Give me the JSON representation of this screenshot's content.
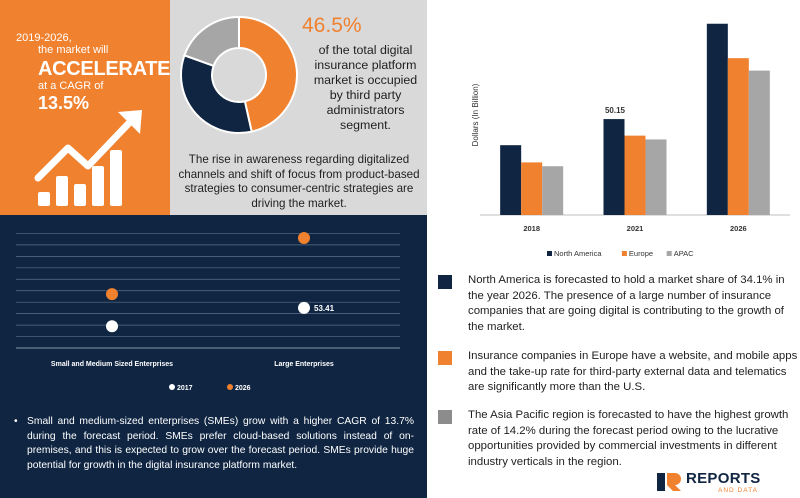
{
  "cagr": {
    "period": "2019-2026,",
    "subject": "the market will",
    "headline": "ACCELERATE",
    "prefix": "at a CAGR of",
    "value": "13.5%"
  },
  "share": {
    "percent": "46.5%",
    "text": "of the total digital insurance platform market is occupied by third party administrators segment.",
    "note": "The rise in awareness regarding digitalized channels and shift of focus from product-based strategies to consumer-centric strategies are driving the market.",
    "donut": {
      "orange": 46.5,
      "navy": 34,
      "grey": 19.5
    }
  },
  "enterprise": {
    "note": "Small and medium-sized enterprises (SMEs) grow with a higher CAGR of 13.7% during the forecast period. SMEs prefer cloud-based solutions instead of on-premises, and this is expected to grow over the forecast period. SMEs provide huge potential for growth in the digital insurance platform market."
  },
  "facts": [
    {
      "color": "#0f2542",
      "text": "North America is forecasted to hold a market share of 34.1% in the year 2026. The presence of a large number of insurance companies that are going digital is contributing to the growth of the market."
    },
    {
      "color": "#f0812f",
      "text": "Insurance companies in Europe have a website, and mobile apps and the take-up rate for third-party external data and telematics are significantly more than the U.S."
    },
    {
      "color": "#8c8c8c",
      "text": "The Asia Pacific region is forecasted to have the highest growth rate of 14.2% during the forecast period owing to the lucrative opportunities provided by commercial investments in different industry verticals in the region."
    }
  ],
  "logo": {
    "name": "REPORTS",
    "sub": "AND DATA"
  },
  "colors": {
    "navy": "#0f2542",
    "orange": "#f0812f",
    "grey": "#a6a6a6",
    "light_grey": "#d9d9d9"
  },
  "chart_data": [
    {
      "type": "bar",
      "ylabel": "Dollars (In Billion)",
      "categories": [
        "2018",
        "2021",
        "2026"
      ],
      "series": [
        {
          "name": "North America",
          "color": "#0f2542",
          "values": [
            36.5,
            50.15,
            100
          ]
        },
        {
          "name": "Europe",
          "color": "#f0812f",
          "values": [
            27.5,
            41.5,
            82
          ]
        },
        {
          "name": "APAC",
          "color": "#a6a6a6",
          "values": [
            25.5,
            39.5,
            75.5
          ]
        }
      ],
      "data_labels": [
        {
          "category": "2021",
          "series": "North America",
          "text": "50.15"
        }
      ],
      "ylim": [
        0,
        103
      ],
      "legend": "bottom",
      "grid": false
    },
    {
      "type": "scatter",
      "categories": [
        "Small and Medium Sized Enterprises",
        "Large Enterprises"
      ],
      "series": [
        {
          "name": "2017",
          "color": "#ffffff",
          "values": [
            1.9,
            3.5
          ]
        },
        {
          "name": "2026",
          "color": "#f0812f",
          "values": [
            4.7,
            9.6
          ]
        }
      ],
      "data_labels": [
        {
          "category": "Large Enterprises",
          "series": "2017",
          "text": "53.41"
        }
      ],
      "ylim": [
        0,
        11
      ],
      "legend": "bottom",
      "grid": true
    }
  ]
}
